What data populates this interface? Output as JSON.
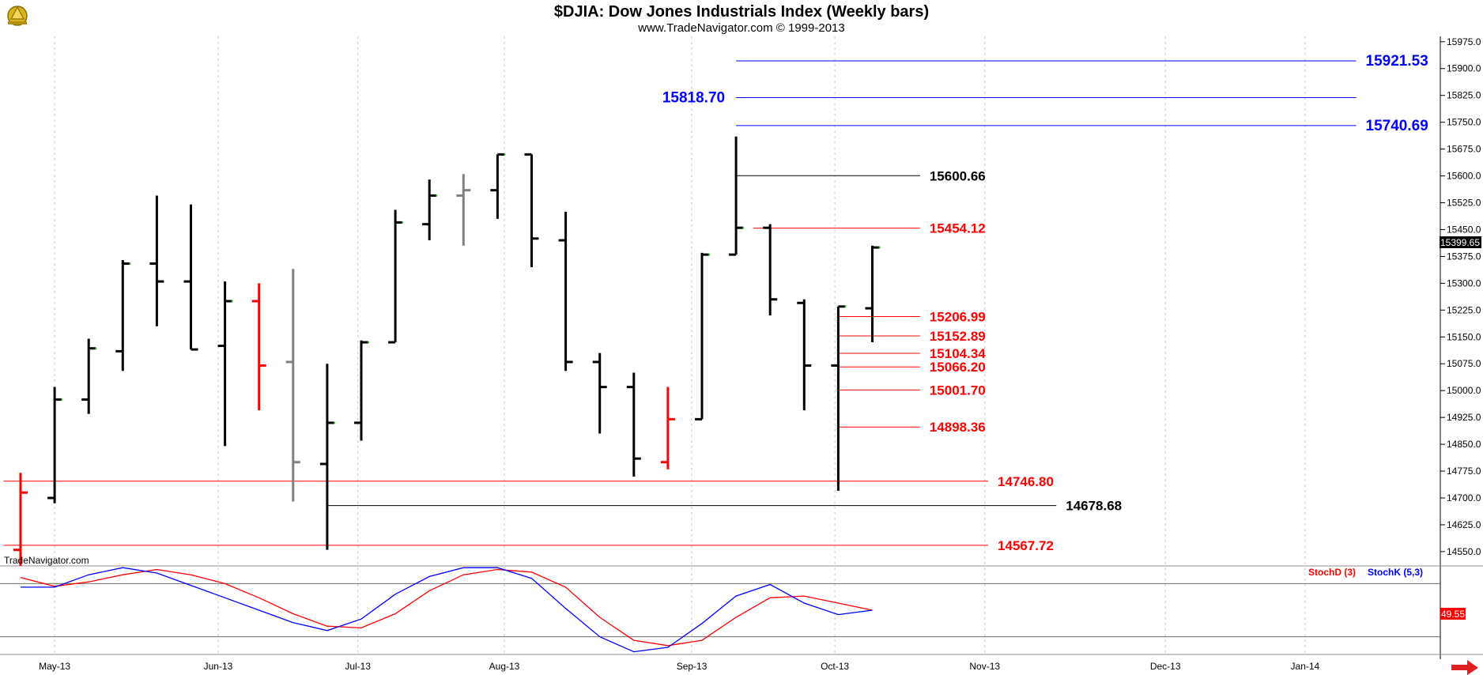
{
  "chart_data": {
    "type": "ohlc",
    "title": "$DJIA:  Dow Jones Industrials Index  (Weekly bars)",
    "subtitle": "www.TradeNavigator.com © 1999-2013",
    "watermark": "TradeNavigator.com",
    "ylim": [
      14510,
      15990
    ],
    "y_ticks": [
      14550,
      14625,
      14700,
      14775,
      14850,
      14925,
      15000,
      15075,
      15150,
      15225,
      15300,
      15375,
      15450,
      15525,
      15600,
      15675,
      15750,
      15825,
      15900,
      15975
    ],
    "y_tick_labels": [
      "14550.0",
      "14625.0",
      "14700.0",
      "14775.0",
      "14850.0",
      "14925.0",
      "15000.0",
      "15075.0",
      "15150.0",
      "15225.0",
      "15300.0",
      "15375.0",
      "15450.0",
      "15525.0",
      "15600.0",
      "15675.0",
      "15750.0",
      "15825.0",
      "15900.0",
      "15975.0"
    ],
    "x_labels": [
      {
        "label": "May-13",
        "week": 1
      },
      {
        "label": "Jun-13",
        "week": 5.8
      },
      {
        "label": "Jul-13",
        "week": 9.9
      },
      {
        "label": "Aug-13",
        "week": 14.2
      },
      {
        "label": "Sep-13",
        "week": 19.7
      },
      {
        "label": "Oct-13",
        "week": 23.9
      },
      {
        "label": "Nov-13",
        "week": 28.3
      },
      {
        "label": "Dec-13",
        "week": 33.6
      },
      {
        "label": "Jan-14",
        "week": 37.7
      }
    ],
    "last_price_label": "15399.65",
    "bars": [
      {
        "week": 0,
        "open": 14555,
        "high": 14770,
        "low": 14510,
        "close": 14715,
        "color": "#ff0000"
      },
      {
        "week": 1,
        "open": 14700,
        "high": 15010,
        "low": 14685,
        "close": 14975,
        "color": "#000000"
      },
      {
        "week": 2,
        "open": 14975,
        "high": 15145,
        "low": 14935,
        "close": 15118,
        "color": "#000000"
      },
      {
        "week": 3,
        "open": 15110,
        "high": 15365,
        "low": 15055,
        "close": 15355,
        "color": "#000000"
      },
      {
        "week": 4,
        "open": 15355,
        "high": 15545,
        "low": 15180,
        "close": 15305,
        "color": "#000000"
      },
      {
        "week": 5,
        "open": 15305,
        "high": 15520,
        "low": 15115,
        "close": 15115,
        "color": "#000000"
      },
      {
        "week": 6,
        "open": 15125,
        "high": 15305,
        "low": 14845,
        "close": 15250,
        "color": "#000000"
      },
      {
        "week": 7,
        "open": 15250,
        "high": 15300,
        "low": 14945,
        "close": 15070,
        "color": "#ff0000"
      },
      {
        "week": 8,
        "open": 15080,
        "high": 15340,
        "low": 14690,
        "close": 14800,
        "color": "#808080"
      },
      {
        "week": 9,
        "open": 14795,
        "high": 15075,
        "low": 14555,
        "close": 14910,
        "color": "#000000"
      },
      {
        "week": 10,
        "open": 14910,
        "high": 15140,
        "low": 14860,
        "close": 15135,
        "color": "#000000"
      },
      {
        "week": 11,
        "open": 15135,
        "high": 15505,
        "low": 15135,
        "close": 15470,
        "color": "#000000"
      },
      {
        "week": 12,
        "open": 15465,
        "high": 15590,
        "low": 15420,
        "close": 15545,
        "color": "#000000"
      },
      {
        "week": 13,
        "open": 15545,
        "high": 15605,
        "low": 15405,
        "close": 15560,
        "color": "#808080"
      },
      {
        "week": 14,
        "open": 15560,
        "high": 15660,
        "low": 15480,
        "close": 15660,
        "color": "#000000"
      },
      {
        "week": 15,
        "open": 15660,
        "high": 15660,
        "low": 15345,
        "close": 15425,
        "color": "#000000"
      },
      {
        "week": 16,
        "open": 15420,
        "high": 15500,
        "low": 15055,
        "close": 15080,
        "color": "#000000"
      },
      {
        "week": 17,
        "open": 15080,
        "high": 15105,
        "low": 14880,
        "close": 15010,
        "color": "#000000"
      },
      {
        "week": 18,
        "open": 15010,
        "high": 15050,
        "low": 14760,
        "close": 14810,
        "color": "#000000"
      },
      {
        "week": 19,
        "open": 14800,
        "high": 15010,
        "low": 14780,
        "close": 14920,
        "color": "#ff0000"
      },
      {
        "week": 20,
        "open": 14920,
        "high": 15385,
        "low": 14920,
        "close": 15380,
        "color": "#000000"
      },
      {
        "week": 21,
        "open": 15380,
        "high": 15710,
        "low": 15380,
        "close": 15455,
        "color": "#000000"
      },
      {
        "week": 22,
        "open": 15455,
        "high": 15465,
        "low": 15210,
        "close": 15255,
        "color": "#000000"
      },
      {
        "week": 23,
        "open": 15245,
        "high": 15255,
        "low": 14945,
        "close": 15070,
        "color": "#000000"
      },
      {
        "week": 24,
        "open": 15070,
        "high": 15235,
        "low": 14720,
        "close": 15235,
        "color": "#000000"
      },
      {
        "week": 25,
        "open": 15230,
        "high": 15405,
        "low": 15135,
        "close": 15400,
        "color": "#000000"
      }
    ],
    "levels": [
      {
        "value": 15921.53,
        "label": "15921.53",
        "color": "#0000ff",
        "x0": 21.0,
        "x1": 39.2,
        "label_side": "right"
      },
      {
        "value": 15818.7,
        "label": "15818.70",
        "color": "#0000ff",
        "x0": 21.0,
        "x1": 39.2,
        "label_side": "left"
      },
      {
        "value": 15740.69,
        "label": "15740.69",
        "color": "#0000ff",
        "x0": 21.0,
        "x1": 39.2,
        "label_side": "right"
      },
      {
        "value": 15600.66,
        "label": "15600.66",
        "color": "#000000",
        "x0": 21.0,
        "x1": 26.4,
        "label_side": "right"
      },
      {
        "value": 15454.12,
        "label": "15454.12",
        "color": "#ff0000",
        "x0": 21.5,
        "x1": 26.4,
        "label_side": "right"
      },
      {
        "value": 15206.99,
        "label": "15206.99",
        "color": "#ff0000",
        "x0": 24.0,
        "x1": 26.4,
        "label_side": "right"
      },
      {
        "value": 15152.89,
        "label": "15152.89",
        "color": "#ff0000",
        "x0": 24.0,
        "x1": 26.4,
        "label_side": "right"
      },
      {
        "value": 15104.34,
        "label": "15104.34",
        "color": "#ff0000",
        "x0": 24.0,
        "x1": 26.4,
        "label_side": "right"
      },
      {
        "value": 15066.2,
        "label": "15066.20",
        "color": "#ff0000",
        "x0": 24.0,
        "x1": 26.4,
        "label_side": "right"
      },
      {
        "value": 15001.7,
        "label": "15001.70",
        "color": "#ff0000",
        "x0": 24.0,
        "x1": 26.4,
        "label_side": "right"
      },
      {
        "value": 14898.36,
        "label": "14898.36",
        "color": "#ff0000",
        "x0": 24.0,
        "x1": 26.4,
        "label_side": "right"
      },
      {
        "value": 14746.8,
        "label": "14746.80",
        "color": "#ff0000",
        "x0": -0.5,
        "x1": 28.4,
        "label_side": "right"
      },
      {
        "value": 14678.68,
        "label": "14678.68",
        "color": "#000000",
        "x0": 9.0,
        "x1": 30.4,
        "label_side": "right"
      },
      {
        "value": 14567.72,
        "label": "14567.72",
        "color": "#ff0000",
        "x0": -0.5,
        "x1": 28.4,
        "label_side": "right"
      }
    ],
    "stochastic": {
      "ylim": [
        0,
        100
      ],
      "levels": [
        80,
        20
      ],
      "labels": {
        "d": "StochD (3)",
        "k": "StochK (5,3)"
      },
      "last_value_label": "49.55",
      "k_color": "#0000ff",
      "d_color": "#ff0000",
      "k": [
        {
          "week": 0,
          "value": 76
        },
        {
          "week": 1,
          "value": 76
        },
        {
          "week": 2,
          "value": 90
        },
        {
          "week": 3,
          "value": 98
        },
        {
          "week": 4,
          "value": 92
        },
        {
          "week": 5,
          "value": 78
        },
        {
          "week": 6,
          "value": 64
        },
        {
          "week": 7,
          "value": 50
        },
        {
          "week": 8,
          "value": 36
        },
        {
          "week": 9,
          "value": 27
        },
        {
          "week": 10,
          "value": 40
        },
        {
          "week": 11,
          "value": 68
        },
        {
          "week": 12,
          "value": 88
        },
        {
          "week": 13,
          "value": 98
        },
        {
          "week": 14,
          "value": 98
        },
        {
          "week": 15,
          "value": 86
        },
        {
          "week": 16,
          "value": 52
        },
        {
          "week": 17,
          "value": 20
        },
        {
          "week": 18,
          "value": 3
        },
        {
          "week": 19,
          "value": 8
        },
        {
          "week": 20,
          "value": 35
        },
        {
          "week": 21,
          "value": 66
        },
        {
          "week": 22,
          "value": 79
        },
        {
          "week": 23,
          "value": 58
        },
        {
          "week": 24,
          "value": 45
        },
        {
          "week": 25,
          "value": 50
        }
      ],
      "d": [
        {
          "week": 0,
          "value": 87
        },
        {
          "week": 1,
          "value": 77
        },
        {
          "week": 2,
          "value": 82
        },
        {
          "week": 3,
          "value": 90
        },
        {
          "week": 4,
          "value": 96
        },
        {
          "week": 5,
          "value": 90
        },
        {
          "week": 6,
          "value": 80
        },
        {
          "week": 7,
          "value": 64
        },
        {
          "week": 8,
          "value": 46
        },
        {
          "week": 9,
          "value": 32
        },
        {
          "week": 10,
          "value": 30
        },
        {
          "week": 11,
          "value": 46
        },
        {
          "week": 12,
          "value": 72
        },
        {
          "week": 13,
          "value": 90
        },
        {
          "week": 14,
          "value": 96
        },
        {
          "week": 15,
          "value": 93
        },
        {
          "week": 16,
          "value": 76
        },
        {
          "week": 17,
          "value": 42
        },
        {
          "week": 18,
          "value": 16
        },
        {
          "week": 19,
          "value": 10
        },
        {
          "week": 20,
          "value": 16
        },
        {
          "week": 21,
          "value": 42
        },
        {
          "week": 22,
          "value": 64
        },
        {
          "week": 23,
          "value": 66
        },
        {
          "week": 24,
          "value": 58
        },
        {
          "week": 25,
          "value": 50
        }
      ]
    },
    "colors": {
      "background": "#ffffff",
      "grid": "#c8c8c8",
      "up_dot": "#00cc00",
      "last_price_box": "#000000",
      "stoch_value_box": "#ff0000"
    }
  }
}
